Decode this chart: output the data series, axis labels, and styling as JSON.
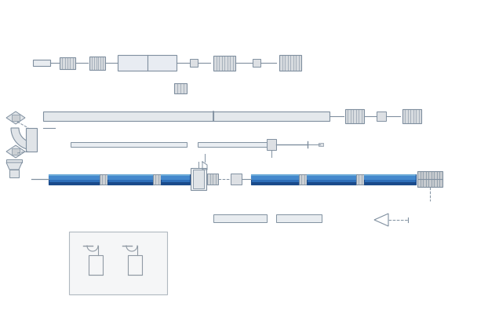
{
  "bg_color": "#ffffff",
  "lc": "#b0b8c0",
  "dc": "#8090a0",
  "bc": "#2e6fba",
  "bcd": "#1a4a8a",
  "bcl": "#6aaad8",
  "bch": "#4488cc",
  "fig_width": 6.08,
  "fig_height": 4.05,
  "dpi": 100
}
